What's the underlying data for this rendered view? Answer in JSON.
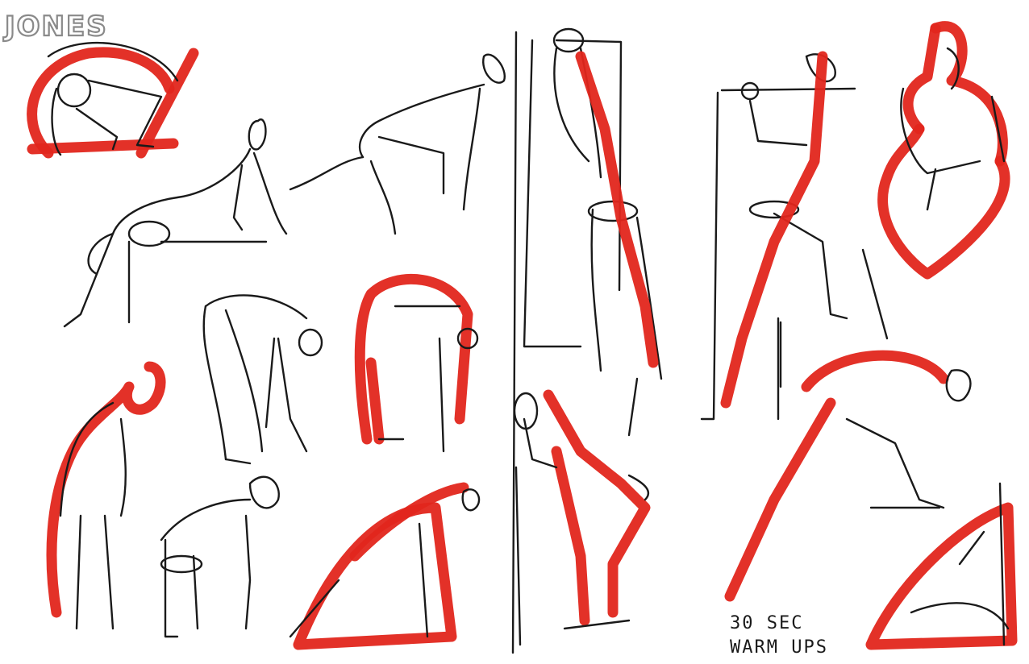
{
  "artwork": {
    "signature": "JONES",
    "caption_line1": "30 SEC",
    "caption_line2": "WARM UPS"
  },
  "colors": {
    "paper": "#ffffff",
    "ink": "#1a1a1a",
    "marker_red": "#e1261c",
    "signature_outline": "#8a8a8a"
  }
}
